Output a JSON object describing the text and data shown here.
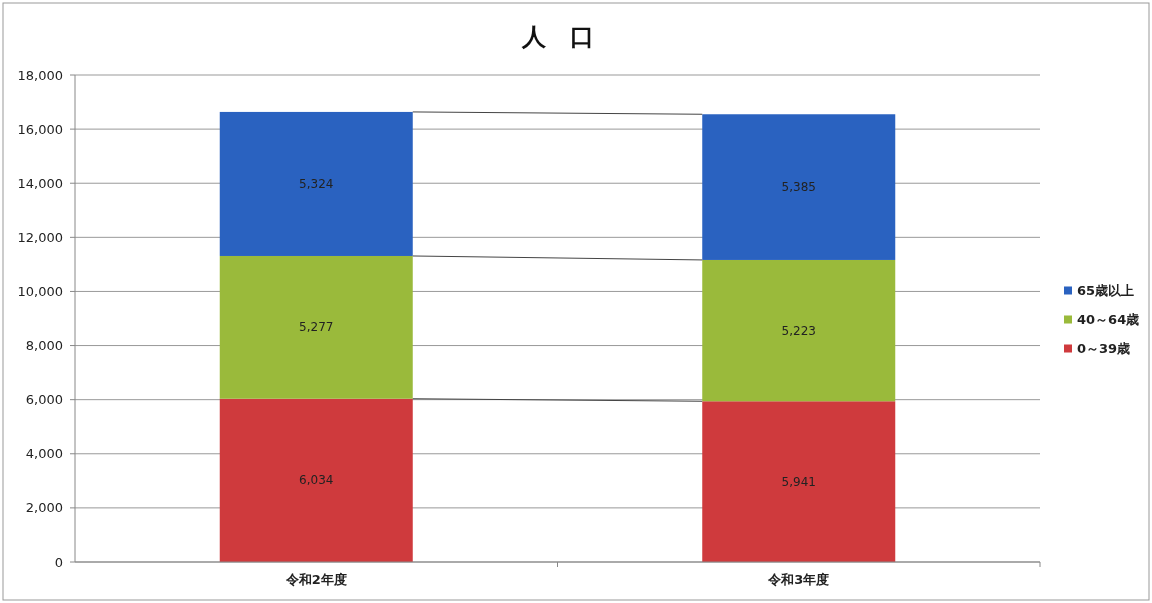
{
  "chart_data": {
    "type": "bar",
    "title": "人　口",
    "categories": [
      "令和2年度",
      "令和3年度"
    ],
    "series": [
      {
        "name": "0～39歳",
        "color": "#cf3a3d",
        "values": [
          6034,
          5941
        ],
        "value_labels": [
          "6,034",
          "5,941"
        ]
      },
      {
        "name": "40～64歳",
        "color": "#9aba3b",
        "values": [
          5277,
          5223
        ],
        "value_labels": [
          "5,277",
          "5,223"
        ]
      },
      {
        "name": "65歳以上",
        "color": "#2a62c0",
        "values": [
          5324,
          5385
        ],
        "value_labels": [
          "5,324",
          "5,385"
        ]
      }
    ],
    "stacked": true,
    "ylim": [
      0,
      18000
    ],
    "yticks": [
      0,
      {
        "value": 2000,
        "label": "2,000"
      },
      {
        "value": 4000,
        "label": "4,000"
      },
      {
        "value": 6000,
        "label": "6,000"
      },
      {
        "value": 8000,
        "label": "8,000"
      },
      {
        "value": 10000,
        "label": "10,000"
      },
      {
        "value": 12000,
        "label": "12,000"
      },
      {
        "value": 14000,
        "label": "14,000"
      },
      {
        "value": 16000,
        "label": "16,000"
      },
      {
        "value": 18000,
        "label": "18,000"
      }
    ],
    "grid": "y",
    "legend": "right"
  }
}
